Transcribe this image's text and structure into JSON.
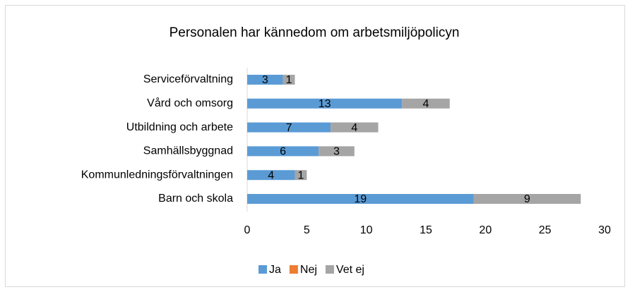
{
  "chart_data": {
    "type": "stacked-barh",
    "title": "Personalen har kännedom om arbetsmiljöpolicyn",
    "categories": [
      "Serviceförvaltning",
      "Vård och omsorg",
      "Utbildning och arbete",
      "Samhällsbyggnad",
      "Kommunledningsförvaltningen",
      "Barn och skola"
    ],
    "series": [
      {
        "name": "Ja",
        "color": "#5b9bd5",
        "values": [
          3,
          13,
          7,
          6,
          4,
          19
        ]
      },
      {
        "name": "Nej",
        "color": "#ed7d31",
        "values": [
          0,
          0,
          0,
          0,
          0,
          0
        ]
      },
      {
        "name": "Vet ej",
        "color": "#a5a5a5",
        "values": [
          1,
          4,
          4,
          3,
          1,
          9
        ]
      }
    ],
    "xlim": [
      0,
      30
    ],
    "xticks": [
      0,
      5,
      10,
      15,
      20,
      25,
      30
    ],
    "grid": false,
    "legend": "bottom"
  }
}
